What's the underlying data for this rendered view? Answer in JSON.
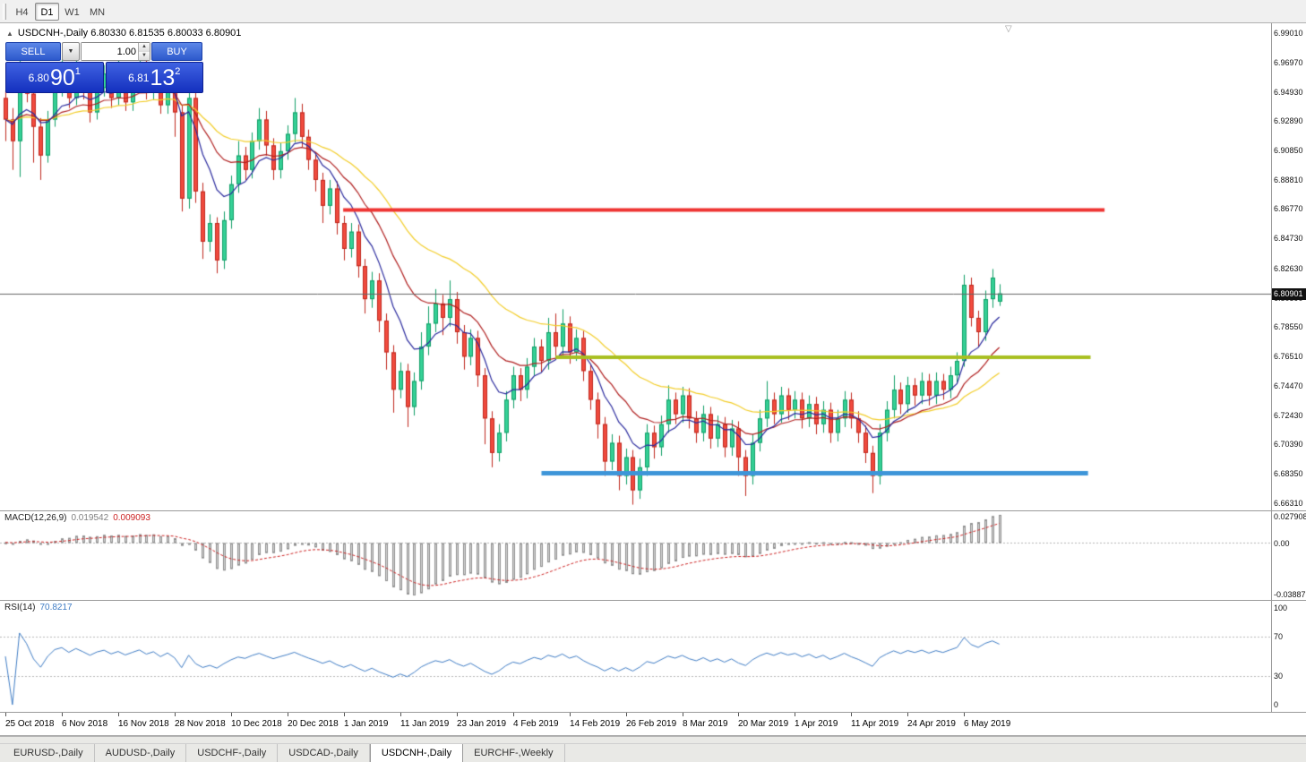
{
  "toolbar": {
    "timeframes": [
      {
        "label": "H4",
        "active": false
      },
      {
        "label": "D1",
        "active": true
      },
      {
        "label": "W1",
        "active": false
      },
      {
        "label": "MN",
        "active": false
      }
    ]
  },
  "chart": {
    "collapse_icon": "▲",
    "header_text": "USDCNH-,Daily 6.80330 6.81535 6.80033 6.80901",
    "shift_marker_icon": "▽",
    "trade_panel": {
      "sell_label": "SELL",
      "buy_label": "BUY",
      "volume": "1.00",
      "sell_price": {
        "base": "6.80",
        "pips": "90",
        "frac": "1"
      },
      "buy_price": {
        "base": "6.81",
        "pips": "13",
        "frac": "2"
      }
    }
  },
  "chart_data": {
    "type": "candlestick",
    "title": "USDCNH-,Daily",
    "symbol": "USDCNH-",
    "timeframe": "Daily",
    "ylim": [
      6.658,
      6.997
    ],
    "y_ticks": [
      "6.99010",
      "6.96970",
      "6.94930",
      "6.92890",
      "6.90850",
      "6.88810",
      "6.86770",
      "6.84730",
      "6.82630",
      "6.80590",
      "6.78550",
      "6.76510",
      "6.74470",
      "6.72430",
      "6.70390",
      "6.68350",
      "6.66310"
    ],
    "x_labels": [
      "25 Oct 2018",
      "6 Nov 2018",
      "16 Nov 2018",
      "28 Nov 2018",
      "10 Dec 2018",
      "20 Dec 2018",
      "1 Jan 2019",
      "11 Jan 2019",
      "23 Jan 2019",
      "4 Feb 2019",
      "14 Feb 2019",
      "26 Feb 2019",
      "8 Mar 2019",
      "20 Mar 2019",
      "1 Apr 2019",
      "11 Apr 2019",
      "24 Apr 2019",
      "6 May 2019"
    ],
    "colors": {
      "up": "#35d096",
      "up_border": "#0f9e66",
      "down": "#f14b3e",
      "down_border": "#bf271d",
      "macd_hist_fill": "#d4d4d4",
      "macd_hist_border": "#909090",
      "macd_signal": "#cc2222",
      "rsi_line": "#3f7cc4",
      "current_price_line": "#666666"
    },
    "overlays": {
      "current_price": 6.80901,
      "moving_averages": [
        {
          "period": 8,
          "color": "#2b2b9e"
        },
        {
          "period": 17,
          "color": "#b02020"
        },
        {
          "period": 34,
          "color": "#f2cd2a"
        }
      ],
      "hlines": [
        {
          "price": 6.867,
          "color": "#ee3432",
          "thickness": 4,
          "x1": 0.27,
          "x2": 0.869
        },
        {
          "price": 6.7645,
          "color": "#a8bf20",
          "thickness": 4,
          "x1": 0.437,
          "x2": 0.858
        },
        {
          "price": 6.6838,
          "color": "#3d95d8",
          "thickness": 5,
          "x1": 0.426,
          "x2": 0.856
        }
      ]
    },
    "indicators": [
      {
        "type": "MACD",
        "name": "MACD(12,26,9)",
        "value_main": "0.019542",
        "value_signal": "0.009093",
        "scale_top": "0.027908",
        "scale_zero": "0.00",
        "scale_bottom": "-0.03887",
        "params": [
          12,
          26,
          9
        ]
      },
      {
        "type": "RSI",
        "name": "RSI(14)",
        "value": "70.8217",
        "params": [
          14
        ],
        "scale_labels": [
          "100",
          "70",
          "30",
          "0"
        ],
        "levels": [
          70,
          30
        ]
      }
    ],
    "ohlc": [
      [
        6.945,
        6.95,
        6.915,
        6.93
      ],
      [
        6.93,
        6.938,
        6.895,
        6.915
      ],
      [
        6.915,
        6.975,
        6.89,
        6.958
      ],
      [
        6.958,
        6.966,
        6.942,
        6.948
      ],
      [
        6.948,
        6.953,
        6.9,
        6.925
      ],
      [
        6.925,
        6.931,
        6.888,
        6.905
      ],
      [
        6.905,
        6.936,
        6.9,
        6.93
      ],
      [
        6.93,
        6.958,
        6.925,
        6.952
      ],
      [
        6.952,
        6.972,
        6.946,
        6.96
      ],
      [
        6.96,
        6.966,
        6.938,
        6.945
      ],
      [
        6.945,
        6.975,
        6.94,
        6.962
      ],
      [
        6.962,
        6.968,
        6.944,
        6.95
      ],
      [
        6.95,
        6.956,
        6.928,
        6.935
      ],
      [
        6.935,
        6.958,
        6.93,
        6.952
      ],
      [
        6.952,
        6.968,
        6.946,
        6.962
      ],
      [
        6.962,
        6.967,
        6.938,
        6.945
      ],
      [
        6.945,
        6.972,
        6.94,
        6.958
      ],
      [
        6.958,
        6.963,
        6.936,
        6.942
      ],
      [
        6.942,
        6.961,
        6.936,
        6.955
      ],
      [
        6.955,
        6.976,
        6.949,
        6.968
      ],
      [
        6.968,
        6.973,
        6.944,
        6.95
      ],
      [
        6.95,
        6.968,
        6.944,
        6.962
      ],
      [
        6.962,
        6.967,
        6.934,
        6.94
      ],
      [
        6.94,
        6.97,
        6.934,
        6.958
      ],
      [
        6.958,
        6.963,
        6.918,
        6.935
      ],
      [
        6.935,
        6.94,
        6.866,
        6.875
      ],
      [
        6.875,
        6.952,
        6.868,
        6.945
      ],
      [
        6.945,
        6.95,
        6.872,
        6.88
      ],
      [
        6.88,
        6.886,
        6.833,
        6.845
      ],
      [
        6.845,
        6.864,
        6.838,
        6.858
      ],
      [
        6.858,
        6.862,
        6.823,
        6.832
      ],
      [
        6.832,
        6.866,
        6.826,
        6.86
      ],
      [
        6.86,
        6.891,
        6.854,
        6.885
      ],
      [
        6.885,
        6.915,
        6.879,
        6.905
      ],
      [
        6.905,
        6.911,
        6.888,
        6.895
      ],
      [
        6.895,
        6.921,
        6.889,
        6.915
      ],
      [
        6.915,
        6.938,
        6.909,
        6.93
      ],
      [
        6.93,
        6.936,
        6.905,
        6.912
      ],
      [
        6.912,
        6.917,
        6.888,
        6.895
      ],
      [
        6.895,
        6.914,
        6.889,
        6.908
      ],
      [
        6.908,
        6.926,
        6.902,
        6.92
      ],
      [
        6.92,
        6.945,
        6.914,
        6.935
      ],
      [
        6.935,
        6.941,
        6.911,
        6.918
      ],
      [
        6.918,
        6.923,
        6.895,
        6.902
      ],
      [
        6.902,
        6.907,
        6.88,
        6.888
      ],
      [
        6.888,
        6.893,
        6.858,
        6.87
      ],
      [
        6.87,
        6.888,
        6.864,
        6.882
      ],
      [
        6.882,
        6.887,
        6.85,
        6.858
      ],
      [
        6.858,
        6.863,
        6.832,
        6.84
      ],
      [
        6.84,
        6.858,
        6.834,
        6.852
      ],
      [
        6.852,
        6.857,
        6.82,
        6.828
      ],
      [
        6.828,
        6.833,
        6.795,
        6.805
      ],
      [
        6.805,
        6.824,
        6.799,
        6.818
      ],
      [
        6.818,
        6.823,
        6.782,
        6.79
      ],
      [
        6.79,
        6.795,
        6.756,
        6.768
      ],
      [
        6.768,
        6.773,
        6.726,
        6.742
      ],
      [
        6.742,
        6.761,
        6.736,
        6.755
      ],
      [
        6.755,
        6.76,
        6.716,
        6.73
      ],
      [
        6.73,
        6.754,
        6.724,
        6.748
      ],
      [
        6.748,
        6.782,
        6.742,
        6.772
      ],
      [
        6.772,
        6.8,
        6.766,
        6.788
      ],
      [
        6.788,
        6.812,
        6.782,
        6.802
      ],
      [
        6.802,
        6.808,
        6.78,
        6.792
      ],
      [
        6.792,
        6.818,
        6.786,
        6.805
      ],
      [
        6.805,
        6.81,
        6.774,
        6.782
      ],
      [
        6.782,
        6.787,
        6.756,
        6.765
      ],
      [
        6.765,
        6.784,
        6.759,
        6.778
      ],
      [
        6.778,
        6.783,
        6.744,
        6.752
      ],
      [
        6.752,
        6.757,
        6.704,
        6.722
      ],
      [
        6.722,
        6.727,
        6.688,
        6.698
      ],
      [
        6.698,
        6.718,
        6.692,
        6.712
      ],
      [
        6.712,
        6.741,
        6.706,
        6.735
      ],
      [
        6.735,
        6.758,
        6.729,
        6.752
      ],
      [
        6.752,
        6.757,
        6.734,
        6.742
      ],
      [
        6.742,
        6.764,
        6.736,
        6.758
      ],
      [
        6.758,
        6.778,
        6.752,
        6.772
      ],
      [
        6.772,
        6.777,
        6.754,
        6.762
      ],
      [
        6.762,
        6.792,
        6.756,
        6.782
      ],
      [
        6.782,
        6.795,
        6.764,
        6.772
      ],
      [
        6.772,
        6.798,
        6.766,
        6.788
      ],
      [
        6.788,
        6.793,
        6.76,
        6.768
      ],
      [
        6.768,
        6.784,
        6.762,
        6.778
      ],
      [
        6.778,
        6.783,
        6.748,
        6.755
      ],
      [
        6.755,
        6.76,
        6.728,
        6.735
      ],
      [
        6.735,
        6.74,
        6.708,
        6.718
      ],
      [
        6.718,
        6.723,
        6.682,
        6.692
      ],
      [
        6.692,
        6.711,
        6.686,
        6.705
      ],
      [
        6.705,
        6.71,
        6.672,
        6.682
      ],
      [
        6.682,
        6.701,
        6.676,
        6.695
      ],
      [
        6.695,
        6.7,
        6.662,
        6.672
      ],
      [
        6.672,
        6.694,
        6.666,
        6.688
      ],
      [
        6.688,
        6.718,
        6.682,
        6.712
      ],
      [
        6.712,
        6.717,
        6.694,
        6.702
      ],
      [
        6.702,
        6.724,
        6.696,
        6.718
      ],
      [
        6.718,
        6.745,
        6.712,
        6.735
      ],
      [
        6.735,
        6.74,
        6.718,
        6.725
      ],
      [
        6.725,
        6.744,
        6.719,
        6.738
      ],
      [
        6.738,
        6.743,
        6.715,
        6.722
      ],
      [
        6.722,
        6.727,
        6.705,
        6.712
      ],
      [
        6.712,
        6.731,
        6.706,
        6.725
      ],
      [
        6.725,
        6.73,
        6.701,
        6.708
      ],
      [
        6.708,
        6.724,
        6.702,
        6.718
      ],
      [
        6.718,
        6.723,
        6.695,
        6.702
      ],
      [
        6.702,
        6.721,
        6.696,
        6.715
      ],
      [
        6.715,
        6.72,
        6.682,
        6.695
      ],
      [
        6.695,
        6.7,
        6.668,
        6.682
      ],
      [
        6.682,
        6.711,
        6.676,
        6.705
      ],
      [
        6.705,
        6.728,
        6.699,
        6.722
      ],
      [
        6.722,
        6.748,
        6.716,
        6.735
      ],
      [
        6.735,
        6.74,
        6.718,
        6.725
      ],
      [
        6.725,
        6.744,
        6.719,
        6.738
      ],
      [
        6.738,
        6.743,
        6.721,
        6.728
      ],
      [
        6.728,
        6.741,
        6.722,
        6.735
      ],
      [
        6.735,
        6.74,
        6.715,
        6.722
      ],
      [
        6.722,
        6.738,
        6.716,
        6.732
      ],
      [
        6.732,
        6.737,
        6.711,
        6.718
      ],
      [
        6.718,
        6.734,
        6.712,
        6.728
      ],
      [
        6.728,
        6.733,
        6.705,
        6.712
      ],
      [
        6.712,
        6.728,
        6.706,
        6.722
      ],
      [
        6.722,
        6.741,
        6.716,
        6.735
      ],
      [
        6.735,
        6.74,
        6.715,
        6.722
      ],
      [
        6.722,
        6.727,
        6.705,
        6.712
      ],
      [
        6.712,
        6.717,
        6.691,
        6.698
      ],
      [
        6.698,
        6.703,
        6.67,
        6.682
      ],
      [
        6.682,
        6.718,
        6.676,
        6.712
      ],
      [
        6.712,
        6.734,
        6.706,
        6.728
      ],
      [
        6.728,
        6.752,
        6.722,
        6.742
      ],
      [
        6.742,
        6.747,
        6.725,
        6.732
      ],
      [
        6.732,
        6.751,
        6.726,
        6.745
      ],
      [
        6.745,
        6.75,
        6.731,
        6.738
      ],
      [
        6.738,
        6.754,
        6.732,
        6.748
      ],
      [
        6.748,
        6.753,
        6.731,
        6.738
      ],
      [
        6.738,
        6.754,
        6.732,
        6.748
      ],
      [
        6.748,
        6.753,
        6.735,
        6.742
      ],
      [
        6.742,
        6.758,
        6.736,
        6.752
      ],
      [
        6.752,
        6.768,
        6.746,
        6.762
      ],
      [
        6.762,
        6.822,
        6.758,
        6.815
      ],
      [
        6.815,
        6.82,
        6.786,
        6.792
      ],
      [
        6.792,
        6.797,
        6.772,
        6.782
      ],
      [
        6.782,
        6.811,
        6.776,
        6.805
      ],
      [
        6.805,
        6.826,
        6.799,
        6.82
      ],
      [
        6.8033,
        6.8154,
        6.8003,
        6.809
      ]
    ]
  },
  "tabs": [
    {
      "label": "EURUSD-,Daily",
      "active": false
    },
    {
      "label": "AUDUSD-,Daily",
      "active": false
    },
    {
      "label": "USDCHF-,Daily",
      "active": false
    },
    {
      "label": "USDCAD-,Daily",
      "active": false
    },
    {
      "label": "USDCNH-,Daily",
      "active": true
    },
    {
      "label": "EURCHF-,Weekly",
      "active": false
    }
  ]
}
